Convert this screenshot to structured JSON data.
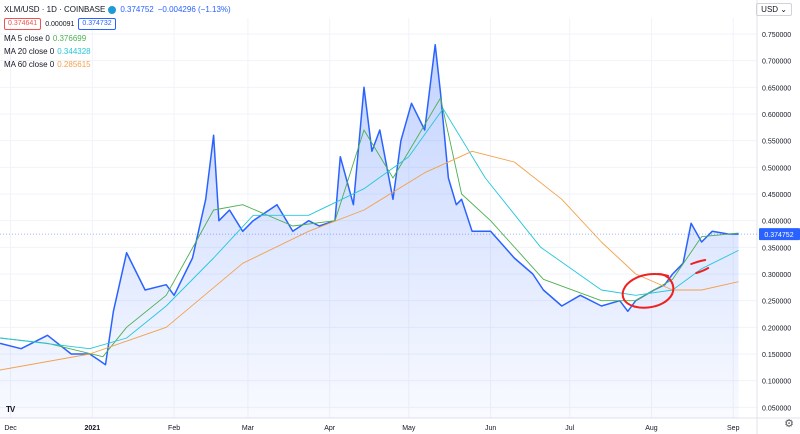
{
  "symbol": {
    "title": "XLM/USD · 1D · COINBASE",
    "last_value": "0.374752",
    "change": "−0.004296 (−1.13%)"
  },
  "order": {
    "sell_price": "0.374641",
    "spread": "0.000091",
    "buy_price": "0.374732"
  },
  "indicators": [
    {
      "label": "MA 5 close 0",
      "value": "0.376699",
      "color": "#4caf50"
    },
    {
      "label": "MA 20 close 0",
      "value": "0.344328",
      "color": "#26c6da"
    },
    {
      "label": "MA 60 close 0",
      "value": "0.285615",
      "color": "#f4a04b"
    }
  ],
  "currency": "USD",
  "colors": {
    "price_line": "#2962ff",
    "area_fill": "#2962ff",
    "grid": "#f0f3fa",
    "price_tag_bg": "#2962ff",
    "annotation": "#ee2020"
  },
  "icons": {
    "settings": "gear-icon",
    "logo": "tv-logo",
    "dropdown": "chevron-down-icon"
  },
  "chart_data": {
    "type": "area",
    "x_start_date": "2020-12-01",
    "x_labels": [
      {
        "label": "Dec",
        "date": "2020-12-01"
      },
      {
        "label": "2021",
        "date": "2021-01-01"
      },
      {
        "label": "Feb",
        "date": "2021-02-01"
      },
      {
        "label": "Mar",
        "date": "2021-03-01"
      },
      {
        "label": "Apr",
        "date": "2021-04-01"
      },
      {
        "label": "May",
        "date": "2021-05-01"
      },
      {
        "label": "Jun",
        "date": "2021-06-01"
      },
      {
        "label": "Jul",
        "date": "2021-07-01"
      },
      {
        "label": "Aug",
        "date": "2021-08-01"
      },
      {
        "label": "Sep",
        "date": "2021-09-01"
      }
    ],
    "x_range": [
      "2020-11-27",
      "2021-09-10"
    ],
    "y_ticks": [
      "0.750000",
      "0.700000",
      "0.650000",
      "0.600000",
      "0.550000",
      "0.500000",
      "0.450000",
      "0.400000",
      "0.350000",
      "0.300000",
      "0.250000",
      "0.200000",
      "0.150000",
      "0.100000",
      "0.050000"
    ],
    "ylim": [
      0.03,
      0.78
    ],
    "grid": true,
    "current_price": 0.374752,
    "price_label": "0.374752",
    "series": [
      {
        "name": "XLM/USD",
        "dates": [
          "2020-11-27",
          "2020-12-05",
          "2020-12-15",
          "2020-12-24",
          "2020-12-31",
          "2021-01-03",
          "2021-01-06",
          "2021-01-09",
          "2021-01-14",
          "2021-01-21",
          "2021-01-29",
          "2021-02-01",
          "2021-02-08",
          "2021-02-13",
          "2021-02-16",
          "2021-02-18",
          "2021-02-22",
          "2021-02-27",
          "2021-03-03",
          "2021-03-12",
          "2021-03-18",
          "2021-03-24",
          "2021-03-28",
          "2021-04-03",
          "2021-04-05",
          "2021-04-10",
          "2021-04-14",
          "2021-04-17",
          "2021-04-20",
          "2021-04-25",
          "2021-04-28",
          "2021-05-02",
          "2021-05-07",
          "2021-05-11",
          "2021-05-13",
          "2021-05-16",
          "2021-05-19",
          "2021-05-21",
          "2021-05-25",
          "2021-06-01",
          "2021-06-10",
          "2021-06-17",
          "2021-06-21",
          "2021-06-28",
          "2021-07-05",
          "2021-07-13",
          "2021-07-20",
          "2021-07-23",
          "2021-07-26",
          "2021-08-02",
          "2021-08-06",
          "2021-08-09",
          "2021-08-13",
          "2021-08-16",
          "2021-08-20",
          "2021-08-24",
          "2021-08-30",
          "2021-09-03"
        ],
        "values": [
          0.17,
          0.16,
          0.185,
          0.15,
          0.15,
          0.14,
          0.13,
          0.23,
          0.34,
          0.27,
          0.28,
          0.26,
          0.33,
          0.44,
          0.56,
          0.4,
          0.42,
          0.38,
          0.4,
          0.43,
          0.38,
          0.4,
          0.39,
          0.4,
          0.52,
          0.43,
          0.65,
          0.53,
          0.57,
          0.44,
          0.55,
          0.62,
          0.57,
          0.73,
          0.64,
          0.48,
          0.43,
          0.44,
          0.38,
          0.38,
          0.33,
          0.3,
          0.27,
          0.24,
          0.26,
          0.24,
          0.25,
          0.23,
          0.25,
          0.27,
          0.28,
          0.3,
          0.32,
          0.395,
          0.36,
          0.38,
          0.375,
          0.3748
        ]
      },
      {
        "name": "MA 5 close 0",
        "dates": [
          "2020-11-27",
          "2020-12-15",
          "2021-01-05",
          "2021-01-14",
          "2021-01-29",
          "2021-02-16",
          "2021-02-27",
          "2021-03-18",
          "2021-04-03",
          "2021-04-14",
          "2021-04-25",
          "2021-05-07",
          "2021-05-13",
          "2021-05-21",
          "2021-06-01",
          "2021-06-21",
          "2021-07-13",
          "2021-07-26",
          "2021-08-09",
          "2021-08-20",
          "2021-09-03"
        ],
        "values": [
          0.18,
          0.17,
          0.145,
          0.2,
          0.26,
          0.42,
          0.43,
          0.39,
          0.4,
          0.57,
          0.48,
          0.58,
          0.63,
          0.45,
          0.4,
          0.29,
          0.25,
          0.25,
          0.29,
          0.37,
          0.3767
        ]
      },
      {
        "name": "MA 20 close 0",
        "dates": [
          "2020-11-27",
          "2020-12-31",
          "2021-01-14",
          "2021-01-29",
          "2021-02-16",
          "2021-03-03",
          "2021-03-24",
          "2021-04-14",
          "2021-05-01",
          "2021-05-14",
          "2021-05-30",
          "2021-06-20",
          "2021-07-13",
          "2021-07-26",
          "2021-08-09",
          "2021-08-20",
          "2021-09-03"
        ],
        "values": [
          0.18,
          0.16,
          0.18,
          0.24,
          0.33,
          0.41,
          0.41,
          0.46,
          0.52,
          0.61,
          0.48,
          0.35,
          0.27,
          0.26,
          0.27,
          0.31,
          0.3443
        ]
      },
      {
        "name": "MA 60 close 0",
        "dates": [
          "2020-11-27",
          "2020-12-31",
          "2021-01-29",
          "2021-02-27",
          "2021-03-24",
          "2021-04-14",
          "2021-05-07",
          "2021-05-25",
          "2021-06-10",
          "2021-06-28",
          "2021-07-13",
          "2021-07-26",
          "2021-08-09",
          "2021-08-20",
          "2021-09-03"
        ],
        "values": [
          0.12,
          0.15,
          0.2,
          0.32,
          0.38,
          0.42,
          0.49,
          0.53,
          0.51,
          0.44,
          0.36,
          0.3,
          0.27,
          0.27,
          0.2856
        ]
      }
    ]
  }
}
